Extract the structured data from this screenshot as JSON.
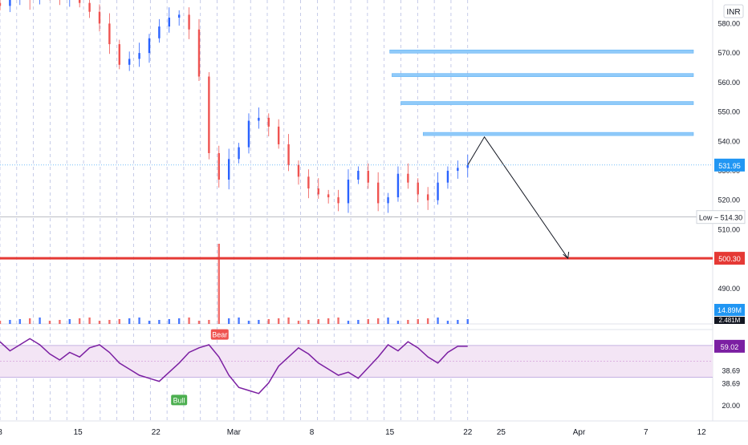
{
  "currency": "INR",
  "colors": {
    "up": "#2962ff",
    "down": "#ef5350",
    "support": "#e53935",
    "resistance": "#90caf9",
    "rsi_line": "#7b1fa2",
    "rsi_band": "#f3e5f5",
    "grid_dashed": "#7986cb",
    "price_tag": "#2196f3",
    "last_rsi_tag": "#7b1fa2",
    "volume_tag": "#2196f3",
    "bear_tag": "#ef5350",
    "bull_tag": "#4caf50"
  },
  "x_axis": {
    "ticks": [
      {
        "label": "8",
        "day": 8
      },
      {
        "label": "15",
        "day": 15
      },
      {
        "label": "22",
        "day": 22
      },
      {
        "label": "Mar",
        "day": 29
      },
      {
        "label": "8",
        "day": 36
      },
      {
        "label": "15",
        "day": 43
      },
      {
        "label": "22",
        "day": 50
      },
      {
        "label": "25",
        "day": 53
      },
      {
        "label": "Apr",
        "day": 60
      },
      {
        "label": "7",
        "day": 66
      },
      {
        "label": "12",
        "day": 71
      }
    ]
  },
  "price_axis": {
    "ticks": [
      "580.00",
      "570.00",
      "560.00",
      "550.00",
      "540.00",
      "530.00",
      "520.00",
      "510.00",
      "490.00"
    ],
    "last_price": "531.95",
    "low_label": "Low",
    "low_value": "514.30",
    "support_value": "500.30",
    "volume_value": "14.89M",
    "volume_partial": "2.481M"
  },
  "rsi_axis": {
    "ticks": [
      "59.54",
      "38.69",
      "38.69",
      "20.00"
    ],
    "last_value": "59.02"
  },
  "signals": {
    "bear": "Bear",
    "bull": "Bull"
  },
  "chart_data": [
    {
      "type": "candlestick",
      "title": "",
      "y_unit": "INR",
      "ylim": [
        478,
        588
      ],
      "x_range_days": [
        8,
        72
      ],
      "grid": "vertical dashed at session breaks",
      "support_line": 500.3,
      "resistance_lines": [
        {
          "price": 570.5,
          "from_day": 43.0
        },
        {
          "price": 562.5,
          "from_day": 43.2
        },
        {
          "price": 553.0,
          "from_day": 44.0
        },
        {
          "price": 542.5,
          "from_day": 46.0
        }
      ],
      "last_price": 531.95,
      "low_marker": 514.3,
      "projection": {
        "path": [
          [
            50.0,
            531.95
          ],
          [
            51.5,
            541.5
          ],
          [
            59.0,
            500.3
          ]
        ]
      },
      "closes": [
        586,
        589,
        590,
        588,
        591,
        590,
        589,
        590,
        587,
        584,
        580,
        573,
        566,
        568,
        570,
        575,
        579,
        582,
        583,
        578,
        562,
        536,
        527,
        534,
        538,
        547,
        548,
        545,
        539,
        532,
        528,
        524,
        522,
        521,
        519,
        527,
        530,
        526,
        519,
        521,
        529,
        526,
        522,
        520,
        526,
        530,
        531,
        531.95
      ],
      "series": [
        {
          "name": "Volume",
          "note": "volume histogram; spike near Mar 1"
        }
      ]
    },
    {
      "type": "line",
      "title": "",
      "name": "RSI",
      "ylim": [
        10,
        70
      ],
      "band": [
        38.69,
        59.54
      ],
      "values": [
        62,
        56,
        60,
        64,
        60,
        54,
        50,
        55,
        52,
        58,
        60,
        55,
        48,
        44,
        40,
        38,
        36,
        42,
        48,
        55,
        58,
        60,
        52,
        40,
        32,
        30,
        28,
        35,
        46,
        52,
        58,
        54,
        48,
        44,
        40,
        42,
        38,
        45,
        52,
        60,
        56,
        62,
        58,
        52,
        48,
        55,
        59,
        59.02
      ]
    }
  ]
}
